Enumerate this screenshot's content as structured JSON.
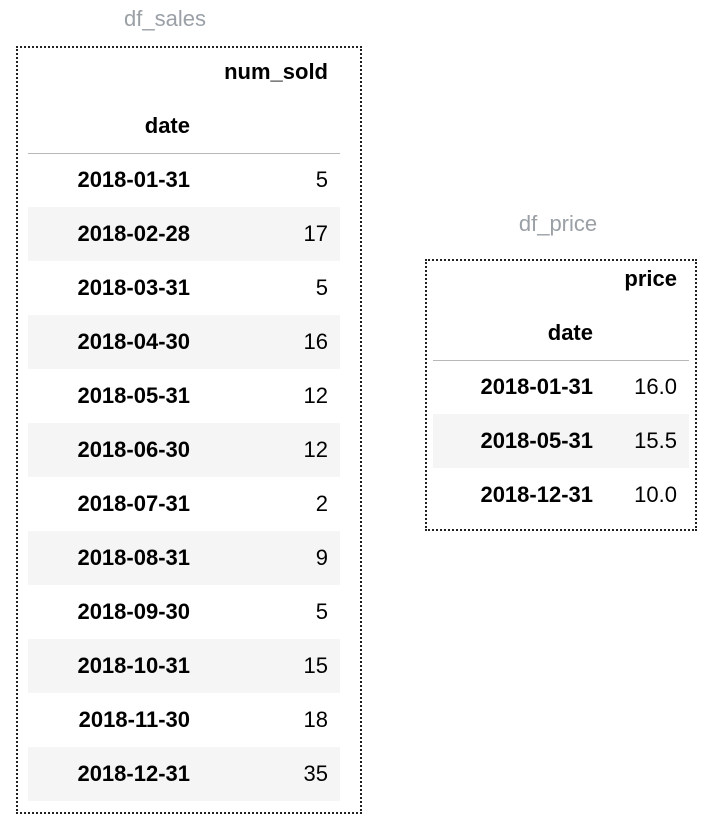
{
  "df_sales": {
    "caption": "df_sales",
    "value_column": "num_sold",
    "index_name": "date",
    "rows": [
      {
        "date": "2018-01-31",
        "value": "5"
      },
      {
        "date": "2018-02-28",
        "value": "17"
      },
      {
        "date": "2018-03-31",
        "value": "5"
      },
      {
        "date": "2018-04-30",
        "value": "16"
      },
      {
        "date": "2018-05-31",
        "value": "12"
      },
      {
        "date": "2018-06-30",
        "value": "12"
      },
      {
        "date": "2018-07-31",
        "value": "2"
      },
      {
        "date": "2018-08-31",
        "value": "9"
      },
      {
        "date": "2018-09-30",
        "value": "5"
      },
      {
        "date": "2018-10-31",
        "value": "15"
      },
      {
        "date": "2018-11-30",
        "value": "18"
      },
      {
        "date": "2018-12-31",
        "value": "35"
      }
    ]
  },
  "df_price": {
    "caption": "df_price",
    "value_column": "price",
    "index_name": "date",
    "rows": [
      {
        "date": "2018-01-31",
        "value": "16.0"
      },
      {
        "date": "2018-05-31",
        "value": "15.5"
      },
      {
        "date": "2018-12-31",
        "value": "10.0"
      }
    ]
  },
  "colors": {
    "caption": "#9aa0a6",
    "stripe": "#f5f5f5",
    "frame": "#222222"
  }
}
